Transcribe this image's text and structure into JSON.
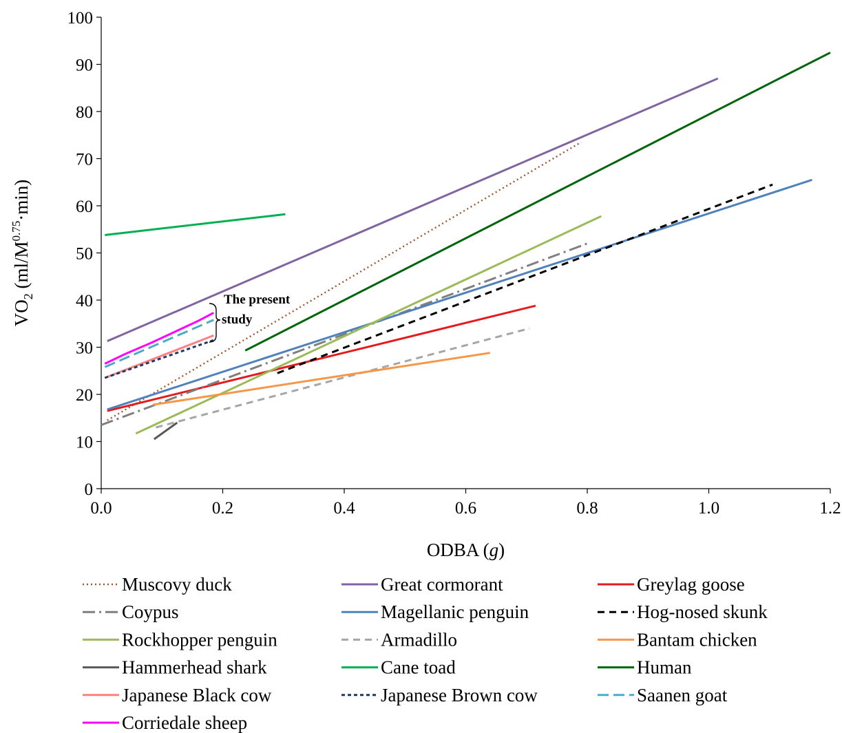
{
  "chart_data": {
    "type": "line",
    "xlabel": "ODBA",
    "xlabel_italic_unit": "g",
    "ylabel": "VO",
    "ylabel_sub": "2",
    "ylabel_rest": " (ml/M",
    "ylabel_sup": "0.75",
    "ylabel_end": "·min)",
    "xlim": [
      0,
      1.2
    ],
    "ylim": [
      0,
      100
    ],
    "x_ticks": [
      "0.0",
      "0.2",
      "0.4",
      "0.6",
      "0.8",
      "1.0",
      "1.2"
    ],
    "y_ticks": [
      "0",
      "10",
      "20",
      "30",
      "40",
      "50",
      "60",
      "70",
      "80",
      "90",
      "100"
    ],
    "grid": false,
    "legend_position": "bottom",
    "annotation": [
      "The present",
      "study"
    ],
    "series": [
      {
        "name": "Muscovy duck",
        "color": "#a0522d",
        "dash": "dotted",
        "x": [
          0.01,
          0.79
        ],
        "y": [
          14.5,
          73.5
        ]
      },
      {
        "name": "Great cormorant",
        "color": "#8064a2",
        "dash": "solid",
        "x": [
          0.01,
          1.015
        ],
        "y": [
          31.3,
          87.0
        ]
      },
      {
        "name": "Greylag goose",
        "color": "#e41a1c",
        "dash": "solid",
        "x": [
          0.01,
          0.715
        ],
        "y": [
          16.5,
          38.8
        ]
      },
      {
        "name": "Coypus",
        "color": "#7f7f7f",
        "dash": "dashdot",
        "x": [
          0.0,
          0.8
        ],
        "y": [
          13.5,
          52.0
        ]
      },
      {
        "name": "Magellanic penguin",
        "color": "#4f81bd",
        "dash": "solid",
        "x": [
          0.01,
          1.17
        ],
        "y": [
          16.8,
          65.5
        ]
      },
      {
        "name": "Hog-nosed skunk",
        "color": "#000000",
        "dash": "dash",
        "x": [
          0.29,
          1.105
        ],
        "y": [
          24.5,
          64.5
        ]
      },
      {
        "name": "Rockhopper penguin",
        "color": "#9bbb59",
        "dash": "solid",
        "x": [
          0.057,
          0.823
        ],
        "y": [
          11.7,
          57.8
        ]
      },
      {
        "name": "Armadillo",
        "color": "#a6a6a6",
        "dash": "dash",
        "x": [
          0.09,
          0.705
        ],
        "y": [
          13.0,
          34.0
        ]
      },
      {
        "name": "Bantam chicken",
        "color": "#f79646",
        "dash": "solid",
        "x": [
          0.085,
          0.64
        ],
        "y": [
          17.8,
          28.8
        ]
      },
      {
        "name": "Hammerhead shark",
        "color": "#595959",
        "dash": "solid",
        "x": [
          0.087,
          0.125
        ],
        "y": [
          10.5,
          14.0
        ]
      },
      {
        "name": "Cane toad",
        "color": "#00b050",
        "dash": "solid",
        "x": [
          0.006,
          0.303
        ],
        "y": [
          53.8,
          58.2
        ]
      },
      {
        "name": "Human",
        "color": "#00640a",
        "dash": "solid",
        "x": [
          0.237,
          1.2
        ],
        "y": [
          29.3,
          92.5
        ]
      },
      {
        "name": "Japanese Black cow",
        "color": "#ff8080",
        "dash": "solid",
        "x": [
          0.006,
          0.185
        ],
        "y": [
          23.5,
          32.5
        ]
      },
      {
        "name": "Japanese Brown cow",
        "color": "#1f3864",
        "dash": "shortdash",
        "x": [
          0.006,
          0.185
        ],
        "y": [
          23.5,
          31.5
        ]
      },
      {
        "name": "Saanen goat",
        "color": "#4bacc6",
        "dash": "longdash",
        "x": [
          0.006,
          0.185
        ],
        "y": [
          25.8,
          35.8
        ]
      },
      {
        "name": "Corriedale sheep",
        "color": "#ff00ff",
        "dash": "solid",
        "x": [
          0.006,
          0.04,
          0.08,
          0.12,
          0.16,
          0.185
        ],
        "y": [
          26.5,
          28.6,
          30.8,
          33.2,
          35.6,
          37.3
        ]
      }
    ]
  }
}
